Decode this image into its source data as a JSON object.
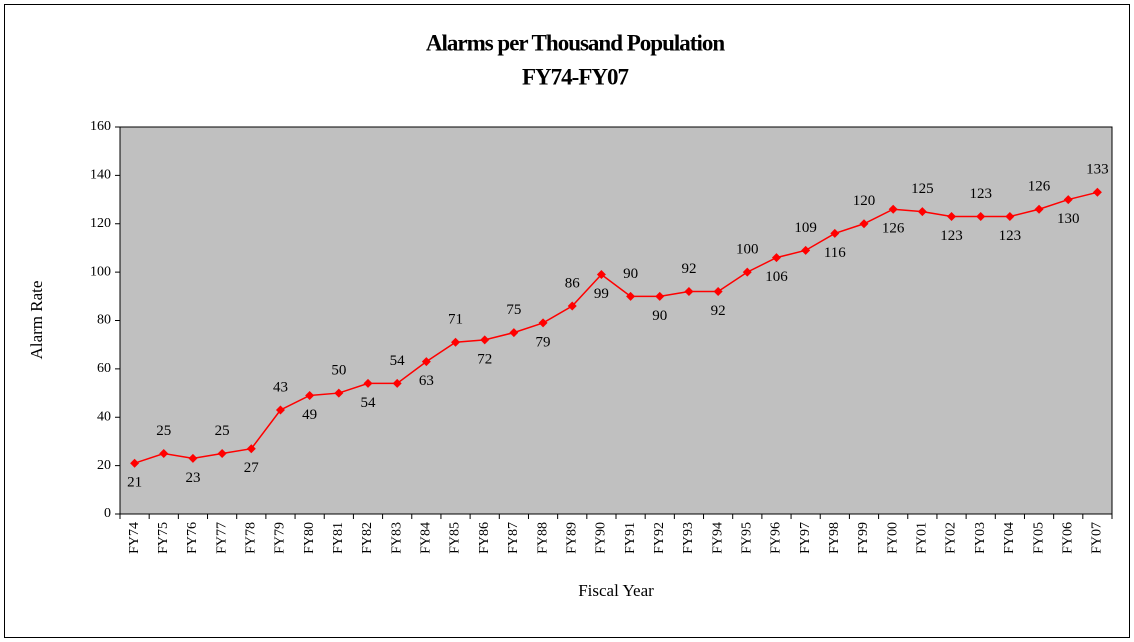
{
  "chart_data": {
    "type": "line",
    "title": "Alarms per Thousand Population",
    "subtitle": "FY74-FY07",
    "x_label": "Fiscal Year",
    "y_label": "Alarm Rate",
    "categories": [
      "FY74",
      "FY75",
      "FY76",
      "FY77",
      "FY78",
      "FY79",
      "FY80",
      "FY81",
      "FY82",
      "FY83",
      "FY84",
      "FY85",
      "FY86",
      "FY87",
      "FY88",
      "FY89",
      "FY90",
      "FY91",
      "FY92",
      "FY93",
      "FY94",
      "FY95",
      "FY96",
      "FY97",
      "FY98",
      "FY99",
      "FY00",
      "FY01",
      "FY02",
      "FY03",
      "FY04",
      "FY05",
      "FY06",
      "FY07"
    ],
    "series": [
      {
        "name": "Alarm Rate",
        "color": "#ff0000",
        "values": [
          21,
          25,
          23,
          25,
          27,
          43,
          49,
          50,
          54,
          54,
          63,
          71,
          72,
          75,
          79,
          86,
          99,
          90,
          90,
          92,
          92,
          100,
          106,
          109,
          116,
          120,
          126,
          125,
          123,
          123,
          123,
          126,
          130,
          133
        ]
      }
    ],
    "ylim": [
      0,
      160
    ],
    "yticks": [
      0,
      20,
      40,
      60,
      80,
      100,
      120,
      140,
      160
    ],
    "plot_background": "#c0c0c0"
  }
}
